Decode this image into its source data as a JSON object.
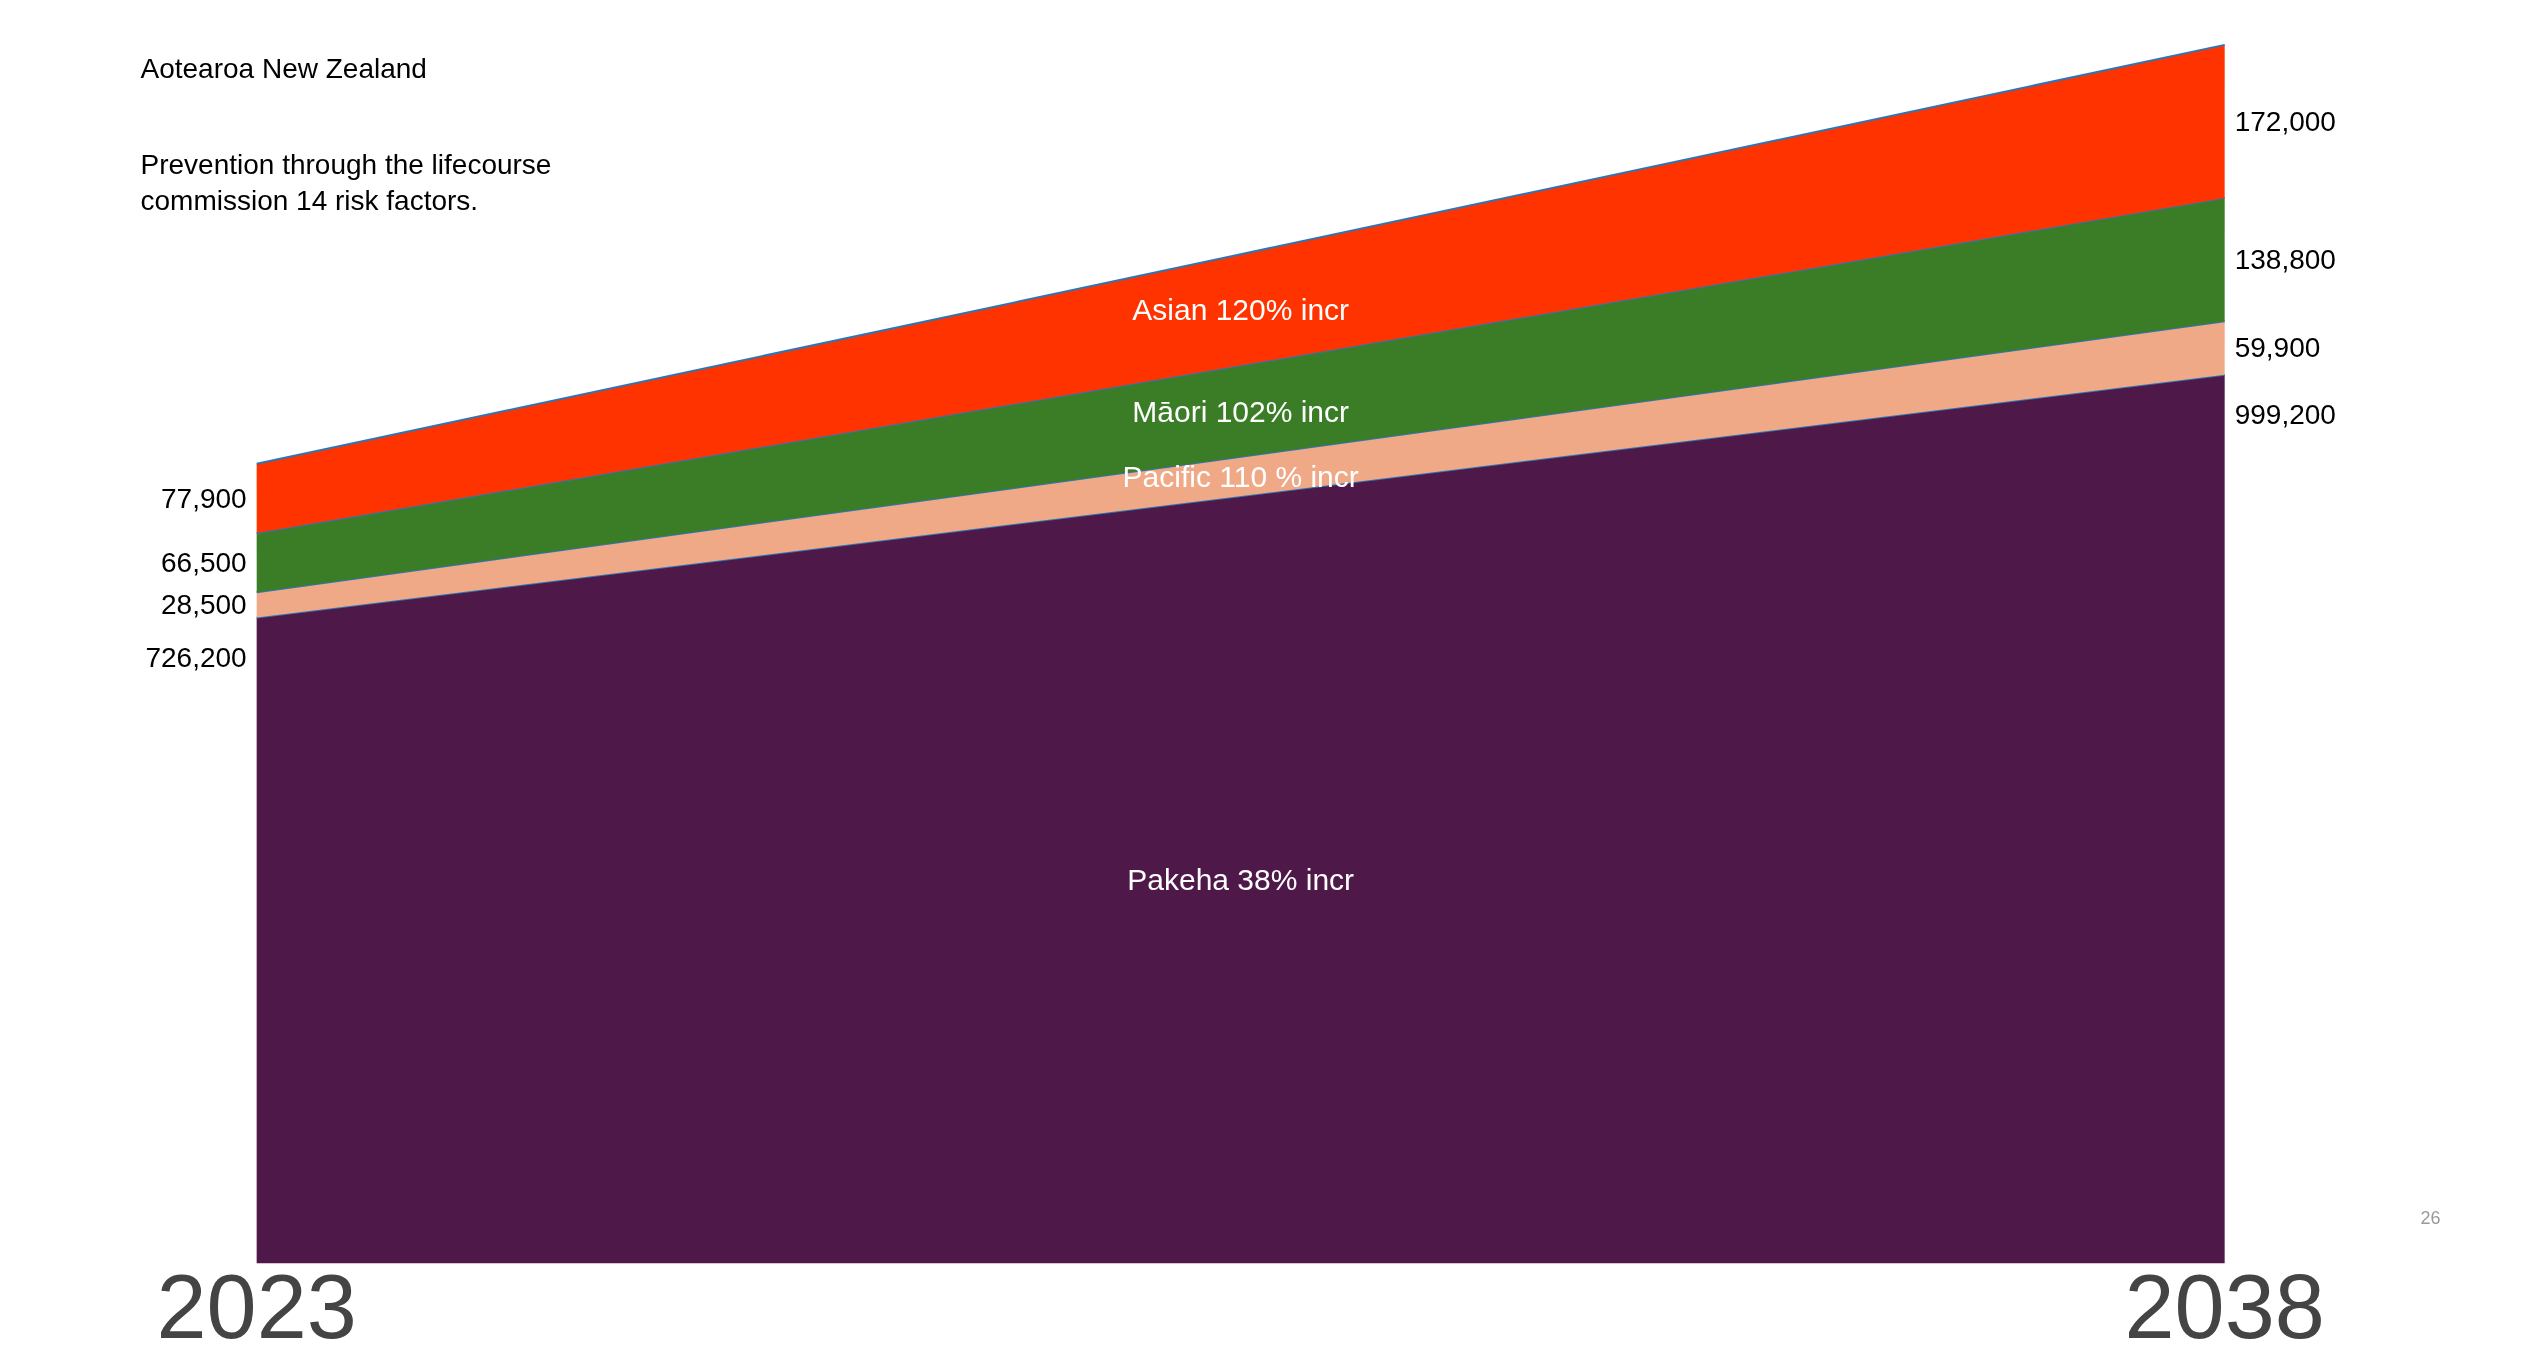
{
  "chart_data": {
    "type": "area",
    "stacked": true,
    "categories": [
      "2023",
      "2038"
    ],
    "series": [
      {
        "name": "Pakeha 38% incr",
        "color": "#4e1848",
        "values": [
          726200,
          999200
        ],
        "value_labels": [
          "726,200",
          "999,200"
        ]
      },
      {
        "name": "Pacific 110 % incr",
        "color": "#f0a987",
        "values": [
          28500,
          59900
        ],
        "value_labels": [
          "28,500",
          "59,900"
        ]
      },
      {
        "name": "Māori 102% incr",
        "color": "#3a7d26",
        "values": [
          66500,
          138800
        ],
        "value_labels": [
          "66,500",
          "138,800"
        ]
      },
      {
        "name": "Asian 120% incr",
        "color": "#ff3300",
        "values": [
          77900,
          172000
        ],
        "value_labels": [
          "77,900",
          "172,000"
        ]
      }
    ],
    "annotations": [
      "Aotearoa New Zealand",
      "Prevention through the lifecourse",
      "commission 14 risk factors.",
      "26"
    ]
  }
}
